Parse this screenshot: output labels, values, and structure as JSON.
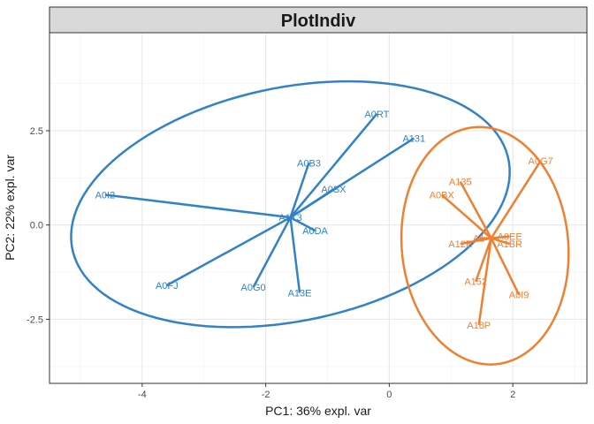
{
  "chart_data": {
    "type": "scatter",
    "title": "PlotIndiv",
    "xlabel": "PC1: 36% expl. var",
    "ylabel": "PC2: 22% expl. var",
    "xlim": [
      -5.5,
      3.2
    ],
    "ylim": [
      -4.2,
      5.1
    ],
    "x_ticks": [
      -4,
      -2,
      0,
      2
    ],
    "y_ticks": [
      -2.5,
      0.0,
      2.5
    ],
    "x_tick_labels": [
      "-4",
      "-2",
      "0",
      "2"
    ],
    "y_tick_labels": [
      "-2.5",
      "0.0",
      "2.5"
    ],
    "grid": true,
    "groups": [
      {
        "color": "#3182C8",
        "centroid": [
          -1.6,
          0.2
        ],
        "ellipse": {
          "center": [
            -1.6,
            0.55
          ],
          "rx": 3.85,
          "ry": 2.9,
          "angle_deg": 36
        },
        "points": [
          {
            "label": "A0RT",
            "x": -0.2,
            "y": 2.95
          },
          {
            "label": "A131",
            "x": 0.4,
            "y": 2.3
          },
          {
            "label": "A0B3",
            "x": -1.3,
            "y": 1.65
          },
          {
            "label": "A0SX",
            "x": -0.9,
            "y": 0.95
          },
          {
            "label": "A0I2",
            "x": -4.6,
            "y": 0.8
          },
          {
            "label": "A1T3",
            "x": -1.6,
            "y": 0.2
          },
          {
            "label": "A0DA",
            "x": -1.2,
            "y": -0.15
          },
          {
            "label": "A0FJ",
            "x": -3.6,
            "y": -1.6
          },
          {
            "label": "A0G0",
            "x": -2.2,
            "y": -1.65
          },
          {
            "label": "A13E",
            "x": -1.45,
            "y": -1.8
          }
        ]
      },
      {
        "color": "#F08030",
        "centroid": [
          1.65,
          -0.35
        ],
        "ellipse": {
          "center": [
            1.55,
            -0.55
          ],
          "rx": 1.35,
          "ry": 3.15,
          "angle_deg": 2
        },
        "points": [
          {
            "label": "A0G7",
            "x": 2.45,
            "y": 1.7
          },
          {
            "label": "A135",
            "x": 1.15,
            "y": 1.15
          },
          {
            "label": "A0BX",
            "x": 0.85,
            "y": 0.8
          },
          {
            "label": "A0EE",
            "x": 1.95,
            "y": -0.3
          },
          {
            "label": "A1",
            "x": 1.45,
            "y": -0.35
          },
          {
            "label": "A1BR",
            "x": 1.95,
            "y": -0.5
          },
          {
            "label": "A12E",
            "x": 1.15,
            "y": -0.5
          },
          {
            "label": "A152",
            "x": 1.4,
            "y": -1.5
          },
          {
            "label": "A0I9",
            "x": 2.1,
            "y": -1.85
          },
          {
            "label": "A18P",
            "x": 1.45,
            "y": -2.65
          }
        ]
      }
    ]
  }
}
